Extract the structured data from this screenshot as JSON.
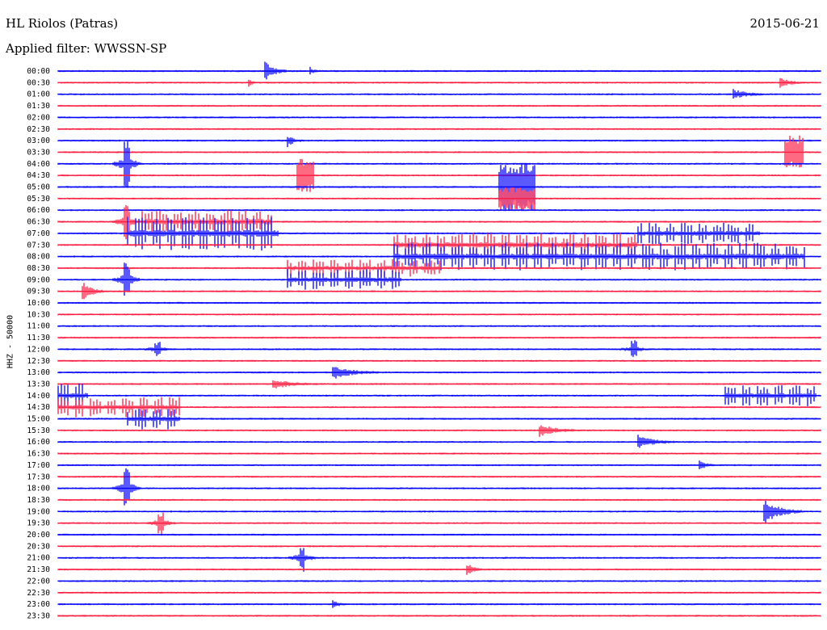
{
  "header": {
    "station": "HL Riolos (Patras)",
    "date": "2015-06-21",
    "filter": "Applied filter: WWSSN-SP"
  },
  "chart_data": {
    "type": "line",
    "subtype": "helicorder",
    "ylabel": "HHZ - 50000",
    "line_labels": [
      "00:00",
      "00:30",
      "01:00",
      "01:30",
      "02:00",
      "02:30",
      "03:00",
      "03:30",
      "04:00",
      "04:30",
      "05:00",
      "05:30",
      "06:00",
      "06:30",
      "07:00",
      "07:30",
      "08:00",
      "08:30",
      "09:00",
      "09:30",
      "10:00",
      "10:30",
      "11:00",
      "11:30",
      "12:00",
      "12:30",
      "13:00",
      "13:30",
      "14:00",
      "14:30",
      "15:00",
      "15:30",
      "16:00",
      "16:30",
      "17:00",
      "17:30",
      "18:00",
      "18:30",
      "19:00",
      "19:30",
      "20:00",
      "20:30",
      "21:00",
      "21:30",
      "22:00",
      "22:30",
      "23:00",
      "23:30"
    ],
    "colors": [
      "#0000ff",
      "#ff1a40"
    ],
    "events": [
      {
        "line": "00:00",
        "pos": 0.27,
        "amp": 14,
        "dur": 0.03,
        "type": "burst"
      },
      {
        "line": "00:00",
        "pos": 0.33,
        "amp": 5,
        "dur": 0.01,
        "type": "burst"
      },
      {
        "line": "00:30",
        "pos": 0.945,
        "amp": 7,
        "dur": 0.03,
        "type": "burst"
      },
      {
        "line": "00:30",
        "pos": 0.25,
        "amp": 5,
        "dur": 0.01,
        "type": "burst"
      },
      {
        "line": "01:00",
        "pos": 0.885,
        "amp": 6,
        "dur": 0.04,
        "type": "burst"
      },
      {
        "line": "03:00",
        "pos": 0.3,
        "amp": 8,
        "dur": 0.02,
        "type": "burst"
      },
      {
        "line": "03:30",
        "pos": 0.952,
        "amp": 20,
        "dur": 0.025,
        "type": "block"
      },
      {
        "line": "04:00",
        "pos": 0.09,
        "amp": 28,
        "dur": 0.006,
        "type": "spike"
      },
      {
        "line": "04:30",
        "pos": 0.313,
        "amp": 20,
        "dur": 0.022,
        "type": "block"
      },
      {
        "line": "05:00",
        "pos": 0.578,
        "amp": 30,
        "dur": 0.048,
        "type": "block"
      },
      {
        "line": "05:30",
        "pos": 0.578,
        "amp": 14,
        "dur": 0.048,
        "type": "block"
      },
      {
        "line": "06:30",
        "pos": 0.09,
        "amp": 22,
        "dur": 0.01,
        "type": "spike"
      },
      {
        "line": "06:30",
        "pos": 0.11,
        "amp": 14,
        "dur": 0.17,
        "type": "swarm"
      },
      {
        "line": "07:00",
        "pos": 0.09,
        "amp": 20,
        "dur": 0.2,
        "type": "swarm"
      },
      {
        "line": "07:00",
        "pos": 0.76,
        "amp": 12,
        "dur": 0.16,
        "type": "swarm"
      },
      {
        "line": "07:30",
        "pos": 0.44,
        "amp": 14,
        "dur": 0.32,
        "type": "swarm"
      },
      {
        "line": "08:00",
        "pos": 0.44,
        "amp": 16,
        "dur": 0.54,
        "type": "swarm"
      },
      {
        "line": "08:30",
        "pos": 0.3,
        "amp": 10,
        "dur": 0.2,
        "type": "swarm"
      },
      {
        "line": "09:00",
        "pos": 0.3,
        "amp": 12,
        "dur": 0.15,
        "type": "swarm"
      },
      {
        "line": "09:00",
        "pos": 0.09,
        "amp": 24,
        "dur": 0.006,
        "type": "spike"
      },
      {
        "line": "09:30",
        "pos": 0.03,
        "amp": 14,
        "dur": 0.03,
        "type": "burst"
      },
      {
        "line": "12:00",
        "pos": 0.13,
        "amp": 8,
        "dur": 0.006,
        "type": "spike"
      },
      {
        "line": "12:00",
        "pos": 0.755,
        "amp": 10,
        "dur": 0.006,
        "type": "spike"
      },
      {
        "line": "13:00",
        "pos": 0.36,
        "amp": 8,
        "dur": 0.06,
        "type": "burst"
      },
      {
        "line": "13:30",
        "pos": 0.28,
        "amp": 6,
        "dur": 0.06,
        "type": "burst"
      },
      {
        "line": "14:00",
        "pos": 0.0,
        "amp": 14,
        "dur": 0.04,
        "type": "swarm"
      },
      {
        "line": "14:00",
        "pos": 0.875,
        "amp": 12,
        "dur": 0.12,
        "type": "swarm"
      },
      {
        "line": "14:30",
        "pos": 0.0,
        "amp": 12,
        "dur": 0.16,
        "type": "swarm"
      },
      {
        "line": "15:00",
        "pos": 0.09,
        "amp": 12,
        "dur": 0.07,
        "type": "swarm"
      },
      {
        "line": "15:30",
        "pos": 0.63,
        "amp": 8,
        "dur": 0.05,
        "type": "burst"
      },
      {
        "line": "16:00",
        "pos": 0.76,
        "amp": 8,
        "dur": 0.05,
        "type": "burst"
      },
      {
        "line": "17:00",
        "pos": 0.84,
        "amp": 7,
        "dur": 0.02,
        "type": "burst"
      },
      {
        "line": "18:00",
        "pos": 0.09,
        "amp": 26,
        "dur": 0.006,
        "type": "spike"
      },
      {
        "line": "19:00",
        "pos": 0.925,
        "amp": 16,
        "dur": 0.05,
        "type": "burst"
      },
      {
        "line": "19:30",
        "pos": 0.135,
        "amp": 14,
        "dur": 0.006,
        "type": "spike"
      },
      {
        "line": "21:00",
        "pos": 0.32,
        "amp": 16,
        "dur": 0.006,
        "type": "spike"
      },
      {
        "line": "21:30",
        "pos": 0.536,
        "amp": 8,
        "dur": 0.02,
        "type": "burst"
      },
      {
        "line": "23:00",
        "pos": 0.36,
        "amp": 6,
        "dur": 0.015,
        "type": "burst"
      }
    ]
  }
}
